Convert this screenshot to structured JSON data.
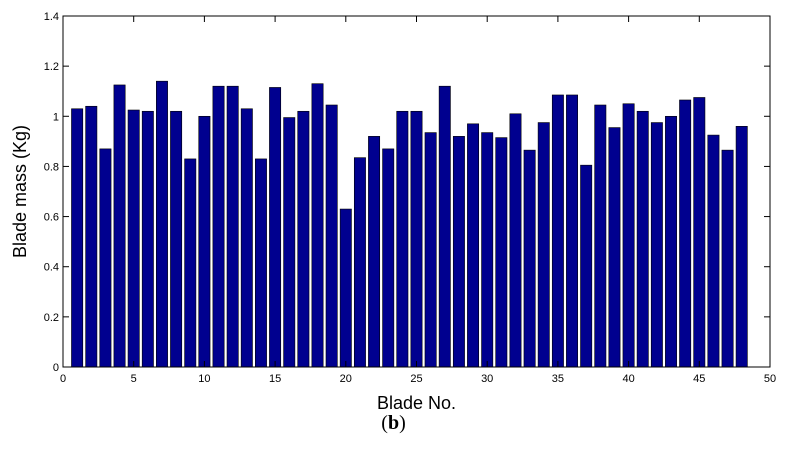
{
  "caption": {
    "open": "(",
    "letter": "b",
    "close": ")"
  },
  "chart_data": {
    "type": "bar",
    "xlabel": "Blade No.",
    "ylabel": "Blade mass (Kg)",
    "xlim": [
      0,
      50
    ],
    "ylim": [
      0,
      1.4
    ],
    "xticks": [
      0,
      5,
      10,
      15,
      20,
      25,
      30,
      35,
      40,
      45,
      50
    ],
    "xtick_labels": [
      "0",
      "5",
      "10",
      "15",
      "20",
      "25",
      "30",
      "35",
      "40",
      "45",
      "50"
    ],
    "yticks": [
      0,
      0.2,
      0.4,
      0.6,
      0.8,
      1.0,
      1.2,
      1.4
    ],
    "ytick_labels": [
      "0",
      "0.2",
      "0.4",
      "0.6",
      "0.8",
      "1",
      "1.2",
      "1.4"
    ],
    "bar_color": "#00008f",
    "grid": false,
    "x": [
      1,
      2,
      3,
      4,
      5,
      6,
      7,
      8,
      9,
      10,
      11,
      12,
      13,
      14,
      15,
      16,
      17,
      18,
      19,
      20,
      21,
      22,
      23,
      24,
      25,
      26,
      27,
      28,
      29,
      30,
      31,
      32,
      33,
      34,
      35,
      36,
      37,
      38,
      39,
      40,
      41,
      42,
      43,
      44,
      45,
      46,
      47,
      48
    ],
    "values": [
      1.03,
      1.04,
      0.87,
      1.125,
      1.025,
      1.02,
      1.14,
      1.02,
      0.83,
      1.0,
      1.12,
      1.12,
      1.03,
      0.83,
      1.115,
      0.995,
      1.02,
      1.13,
      1.045,
      0.63,
      0.835,
      0.92,
      0.87,
      1.02,
      1.02,
      0.935,
      1.12,
      0.92,
      0.97,
      0.935,
      0.915,
      1.01,
      0.865,
      0.975,
      1.085,
      1.085,
      0.805,
      1.045,
      0.955,
      1.05,
      1.02,
      0.975,
      1.0,
      1.065,
      1.075,
      0.925,
      0.865,
      0.96
    ]
  }
}
